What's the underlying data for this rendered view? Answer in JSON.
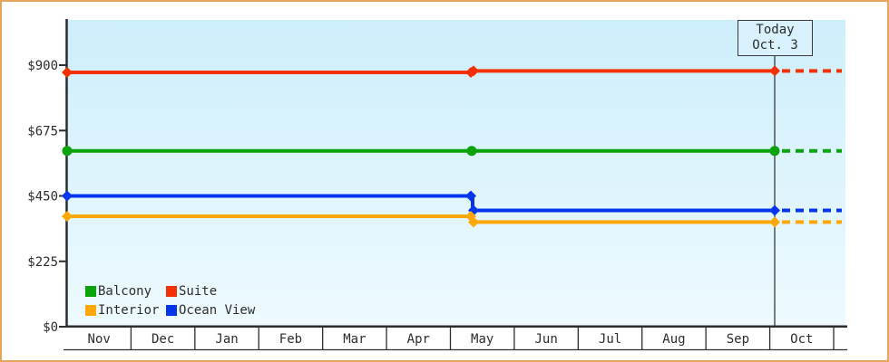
{
  "page": {
    "border_color": "#e9a45c",
    "background_color": "#ffffff",
    "text_color": "#2d2d2d"
  },
  "chart_data": {
    "type": "line",
    "title": "",
    "description": "Cruise cabin price history by category; step change mid-May; dotted projection after today (Oct. 3)",
    "months": [
      "Nov",
      "Dec",
      "Jan",
      "Feb",
      "Mar",
      "Apr",
      "May",
      "Jun",
      "Jul",
      "Aug",
      "Sep",
      "Oct"
    ],
    "y_ticks": [
      {
        "value": 0,
        "label": "$0"
      },
      {
        "value": 225,
        "label": "$225"
      },
      {
        "value": 450,
        "label": "$450"
      },
      {
        "value": 675,
        "label": "$675"
      },
      {
        "value": 900,
        "label": "$900"
      }
    ],
    "ylim": [
      0,
      1056
    ],
    "grid": "off",
    "plot_background_top": "#cdeefb",
    "plot_background_bottom": "#eefaff",
    "series": [
      {
        "name": "Suite",
        "color": "#f43005",
        "marker": "diamond",
        "price_nov_to_mid_may": 875,
        "price_mid_may_to_today": 880
      },
      {
        "name": "Balcony",
        "color": "#0ba30b",
        "marker": "circle",
        "price_nov_to_mid_may": 605,
        "price_mid_may_to_today": 605
      },
      {
        "name": "Ocean View",
        "color": "#0536ee",
        "marker": "diamond",
        "price_nov_to_mid_may": 450,
        "price_mid_may_to_today": 400
      },
      {
        "name": "Interior",
        "color": "#ffa805",
        "marker": "diamond",
        "price_nov_to_mid_may": 380,
        "price_mid_may_to_today": 360
      }
    ],
    "price_change_point": "mid-May",
    "today_marker": {
      "line1": "Today",
      "line2": "Oct. 3"
    },
    "dotted_projection_after_today": true
  },
  "legend": {
    "position": "bottom-left inside plot",
    "items": [
      {
        "label": "Balcony",
        "color": "#0ba30b"
      },
      {
        "label": "Suite",
        "color": "#f43005"
      },
      {
        "label": "Interior",
        "color": "#ffa805"
      },
      {
        "label": "Ocean View",
        "color": "#0536ee"
      }
    ]
  }
}
